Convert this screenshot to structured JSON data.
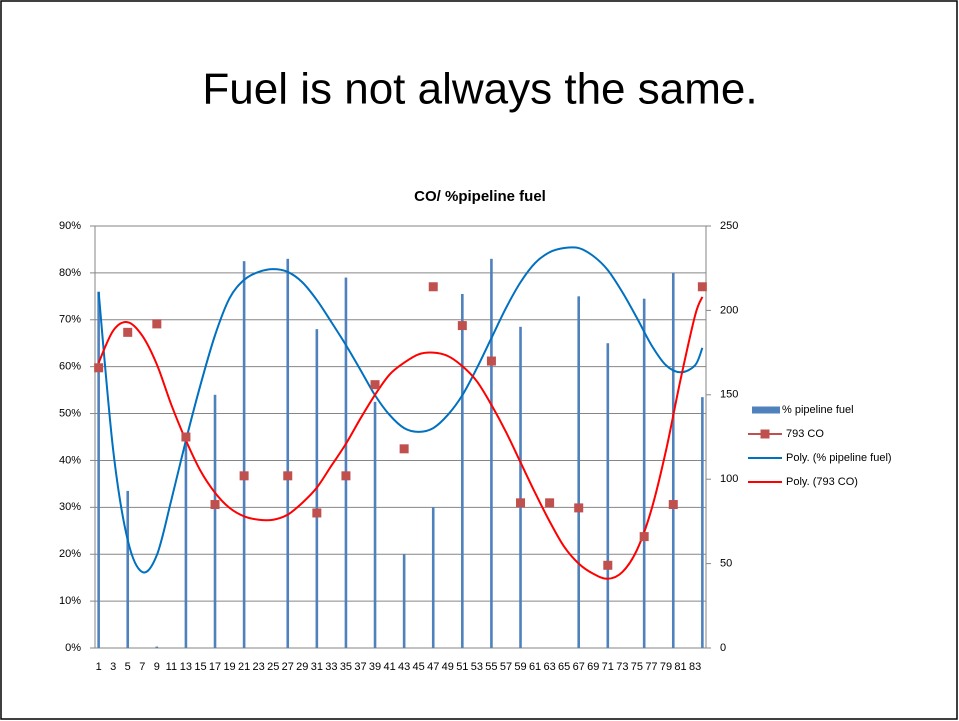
{
  "slide_title": "Fuel is not always the same.",
  "chart_data": {
    "type": "bar",
    "title": "CO/ %pipeline fuel",
    "categories": [
      1,
      null,
      3,
      null,
      5,
      null,
      7,
      null,
      9,
      null,
      11,
      null,
      13,
      null,
      15,
      null,
      17,
      null,
      19,
      null,
      21,
      null,
      23,
      null,
      25,
      null,
      27,
      null,
      29,
      null,
      31,
      null,
      33,
      null,
      35,
      null,
      37,
      null,
      39,
      null,
      41,
      null,
      43,
      null,
      45,
      null,
      47,
      null,
      49,
      null,
      51,
      null,
      53,
      null,
      55,
      null,
      57,
      null,
      59,
      null,
      61,
      null,
      63,
      null,
      65,
      null,
      67,
      null,
      69,
      null,
      71,
      null,
      73,
      null,
      75,
      null,
      77,
      null,
      79,
      null,
      81,
      null,
      83,
      null
    ],
    "series": [
      {
        "name": "% pipeline fuel",
        "type": "bar",
        "color": "#4f81bd",
        "values": [
          76,
          null,
          null,
          null,
          33.5,
          null,
          null,
          null,
          0.3,
          null,
          null,
          null,
          45,
          null,
          null,
          null,
          54,
          null,
          null,
          null,
          82.5,
          null,
          null,
          null,
          null,
          null,
          83,
          null,
          null,
          null,
          68,
          null,
          null,
          null,
          79,
          null,
          null,
          null,
          52.5,
          null,
          null,
          null,
          20,
          null,
          null,
          null,
          30,
          null,
          null,
          null,
          75.5,
          null,
          null,
          null,
          83,
          null,
          null,
          null,
          68.5,
          null,
          null,
          null,
          null,
          null,
          null,
          null,
          75,
          null,
          null,
          null,
          65,
          null,
          null,
          null,
          null,
          74.5,
          null,
          null,
          null,
          80,
          null,
          null,
          null,
          53.5
        ]
      },
      {
        "name": "793 CO",
        "type": "marker",
        "axis": "y2",
        "color": "#c0504d",
        "values": [
          166,
          null,
          null,
          null,
          187,
          null,
          null,
          null,
          192,
          null,
          null,
          null,
          125,
          null,
          null,
          null,
          85,
          null,
          null,
          null,
          102,
          null,
          null,
          null,
          null,
          null,
          102,
          null,
          null,
          null,
          80,
          null,
          null,
          null,
          102,
          null,
          null,
          null,
          156,
          null,
          null,
          null,
          118,
          null,
          null,
          null,
          214,
          null,
          null,
          null,
          191,
          null,
          null,
          null,
          170,
          null,
          null,
          null,
          86,
          null,
          null,
          null,
          86,
          null,
          null,
          null,
          83,
          null,
          null,
          null,
          49,
          null,
          null,
          null,
          null,
          66,
          null,
          null,
          null,
          85,
          null,
          null,
          null,
          214
        ]
      },
      {
        "name": "Poly. (% pipeline fuel)",
        "type": "trend",
        "color": "#0070c0",
        "x": [
          1,
          3,
          5,
          7,
          9,
          11,
          13,
          15,
          17,
          19,
          21,
          23,
          25,
          27,
          29,
          31,
          33,
          35,
          37,
          39,
          41,
          43,
          45,
          47,
          49,
          51,
          53,
          55,
          57,
          59,
          61,
          63,
          65,
          67,
          69,
          71,
          73,
          75,
          77,
          79,
          81,
          83,
          84
        ],
        "values": [
          75.9,
          42.2,
          23.0,
          16.2,
          19.8,
          31.6,
          44.3,
          56.1,
          66.7,
          74.6,
          78.5,
          80.2,
          80.8,
          80.2,
          78.0,
          74.2,
          69.5,
          64.6,
          59.3,
          53.9,
          49.7,
          46.9,
          46.1,
          46.9,
          49.7,
          53.9,
          59.7,
          66.1,
          72.5,
          78.0,
          82.1,
          84.4,
          85.3,
          85.3,
          83.6,
          80.6,
          75.9,
          70.4,
          64.6,
          60.3,
          58.8,
          60.3,
          64.0
        ]
      },
      {
        "name": "Poly. (793 CO)",
        "type": "trend",
        "axis": "y2",
        "color": "#ff0000",
        "x": [
          1,
          3,
          5,
          7,
          9,
          11,
          13,
          15,
          17,
          19,
          21,
          23,
          25,
          27,
          29,
          31,
          33,
          35,
          37,
          39,
          41,
          43,
          45,
          47,
          49,
          51,
          53,
          55,
          57,
          59,
          61,
          63,
          65,
          67,
          69,
          71,
          73,
          75,
          77,
          79,
          81,
          83,
          84
        ],
        "values": [
          169,
          188,
          193,
          185,
          168,
          144,
          123,
          105,
          92,
          83,
          78,
          76,
          76,
          79,
          86,
          95,
          108,
          121,
          136,
          150,
          162,
          169,
          174,
          175,
          173,
          167,
          158,
          144,
          128,
          110,
          92,
          75,
          60,
          50,
          44,
          41,
          45,
          58,
          82,
          117,
          159,
          197,
          208
        ]
      }
    ],
    "ylim": [
      0,
      90
    ],
    "yticks": [
      {
        "value": 0,
        "label": "0%"
      },
      {
        "value": 10,
        "label": "10%"
      },
      {
        "value": 20,
        "label": "20%"
      },
      {
        "value": 30,
        "label": "30%"
      },
      {
        "value": 40,
        "label": "40%"
      },
      {
        "value": 50,
        "label": "50%"
      },
      {
        "value": 60,
        "label": "60%"
      },
      {
        "value": 70,
        "label": "70%"
      },
      {
        "value": 80,
        "label": "80%"
      },
      {
        "value": 90,
        "label": "90%"
      }
    ],
    "y2lim": [
      0,
      250
    ],
    "y2ticks": [
      0,
      50,
      100,
      150,
      200,
      250
    ],
    "grid": true,
    "legend": "right"
  }
}
